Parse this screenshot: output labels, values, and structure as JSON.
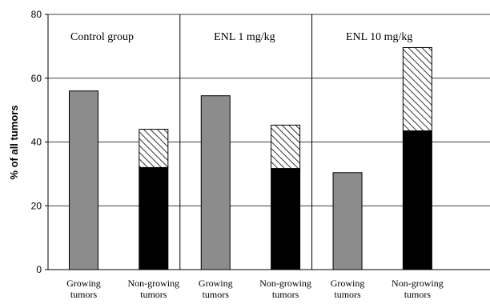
{
  "chart_data": {
    "type": "bar",
    "ylabel": "% of all tumors",
    "ylim": [
      0,
      80
    ],
    "yticks": [
      0,
      20,
      40,
      60,
      80
    ],
    "grid": true,
    "groups": [
      {
        "label": "Control group",
        "bars": [
          {
            "category": "Growing tumors",
            "lines": [
              "Growing",
              "tumors"
            ],
            "segments": [
              {
                "pattern": "solid-gray",
                "value": 56
              }
            ]
          },
          {
            "category": "Non-growing tumors",
            "lines": [
              "Non-growing",
              "tumors"
            ],
            "segments": [
              {
                "pattern": "solid-black",
                "value": 32
              },
              {
                "pattern": "hatched",
                "value": 12
              }
            ]
          }
        ]
      },
      {
        "label": "ENL 1 mg/kg",
        "bars": [
          {
            "category": "Growing tumors",
            "lines": [
              "Growing",
              "tumors"
            ],
            "segments": [
              {
                "pattern": "solid-gray",
                "value": 54.5
              }
            ]
          },
          {
            "category": "Non-growing tumors",
            "lines": [
              "Non-growing",
              "tumors"
            ],
            "segments": [
              {
                "pattern": "solid-black",
                "value": 31.7
              },
              {
                "pattern": "hatched",
                "value": 13.6
              }
            ]
          }
        ]
      },
      {
        "label": "ENL 10 mg/kg",
        "bars": [
          {
            "category": "Growing tumors",
            "lines": [
              "Growing",
              "tumors"
            ],
            "segments": [
              {
                "pattern": "solid-gray",
                "value": 30.4
              }
            ]
          },
          {
            "category": "Non-growing tumors",
            "lines": [
              "Non-growing",
              "tumors"
            ],
            "segments": [
              {
                "pattern": "solid-black",
                "value": 43.5
              },
              {
                "pattern": "hatched",
                "value": 26.1
              }
            ]
          }
        ]
      }
    ]
  },
  "colors": {
    "gray": "#8c8c8c",
    "black": "#000000",
    "gridline": "#000000"
  }
}
